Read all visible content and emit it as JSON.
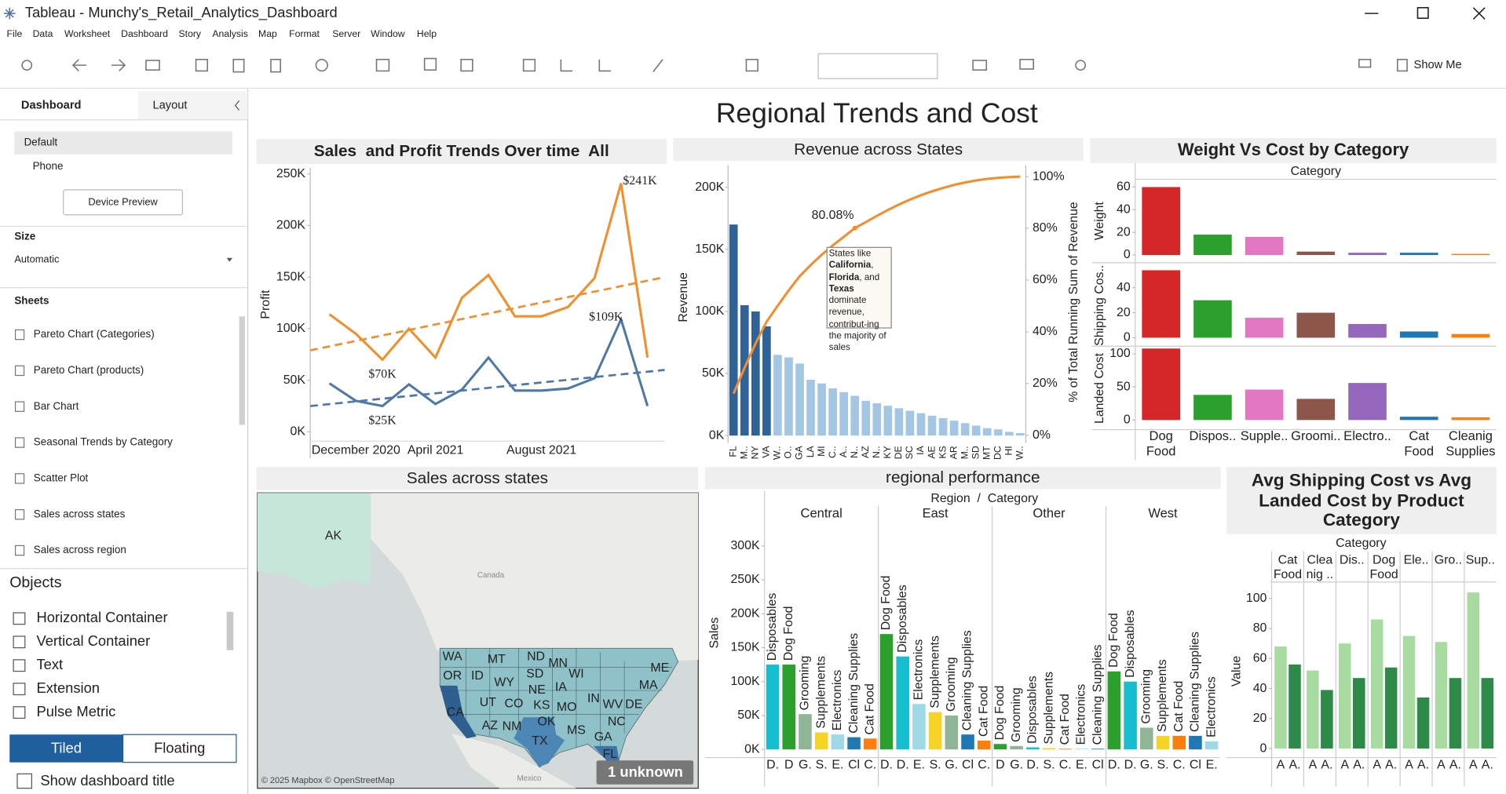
{
  "window": {
    "title": "Tableau - Munchy's_Retail_Analytics_Dashboard"
  },
  "menu": [
    "File",
    "Data",
    "Worksheet",
    "Dashboard",
    "Story",
    "Analysis",
    "Map",
    "Format",
    "Server",
    "Window",
    "Help"
  ],
  "toolbar": {
    "show_me": "Show Me"
  },
  "sidebar": {
    "tabs": [
      "Dashboard",
      "Layout"
    ],
    "devices": [
      "Default",
      "Phone"
    ],
    "device_preview": "Device Preview",
    "size_title": "Size",
    "size_value": "Automatic",
    "sheets_title": "Sheets",
    "sheets": [
      "Pareto Chart (Categories)",
      "Pareto Chart (products)",
      "Bar Chart",
      "Seasonal Trends by Category",
      "Scatter Plot",
      "Sales across states",
      "Sales across region"
    ],
    "objects_title": "Objects",
    "objects": [
      "Horizontal Container",
      "Vertical Container",
      "Text",
      "Extension",
      "Pulse Metric"
    ],
    "layout_modes": [
      "Tiled",
      "Floating"
    ],
    "show_title": "Show dashboard title"
  },
  "dashboard": {
    "title": "Regional Trends and Cost"
  },
  "chart_data": [
    {
      "type": "line",
      "title": "Sales  and Profit Trends Over time  All",
      "y_label": "Profit",
      "categories": [
        null,
        "December 2020",
        null,
        null,
        "April 2021",
        null,
        null,
        null,
        "August 2021",
        null,
        null,
        null,
        null
      ],
      "series": [
        {
          "color": "#f28e2b",
          "values": [
            114000,
            95000,
            70000,
            100000,
            72000,
            130000,
            152000,
            112000,
            112000,
            121000,
            149000,
            241000,
            72000
          ],
          "value_labels": [
            null,
            null,
            "$70K",
            null,
            null,
            null,
            null,
            null,
            null,
            null,
            null,
            "$241K",
            null
          ],
          "trend": [
            79000,
            150000
          ]
        },
        {
          "color": "#4e79a7",
          "values": [
            47000,
            30000,
            25000,
            46000,
            27000,
            41000,
            72000,
            40000,
            40000,
            42000,
            52000,
            109000,
            25000
          ],
          "value_labels": [
            null,
            null,
            "$25K",
            null,
            null,
            null,
            null,
            null,
            null,
            null,
            null,
            "$109K",
            null
          ],
          "trend": [
            25000,
            60000
          ]
        }
      ],
      "ylim": [
        -9000,
        256000
      ],
      "yticks": [
        {
          "value": 0,
          "label": "0K"
        },
        {
          "value": 50000,
          "label": "50K"
        },
        {
          "value": 100000,
          "label": "100K"
        },
        {
          "value": 150000,
          "label": "150K"
        },
        {
          "value": 200000,
          "label": "200K"
        },
        {
          "value": 250000,
          "label": "250K"
        }
      ]
    },
    {
      "type": "pareto",
      "title": "Revenue across States",
      "y_label": "Revenue",
      "y2_label": "% of Total Running Sum of Revenue",
      "categories": [
        "FL",
        "M..",
        "NY",
        "VA",
        "W..",
        "O..",
        "GA",
        "LA",
        "MI",
        "C..",
        "A..",
        "N..",
        "AZ",
        "N..",
        "KY",
        "DE",
        "SC",
        "IA",
        "AE",
        "KS",
        "AR",
        "M..",
        "SD",
        "MT",
        "DC",
        "HI",
        "W.."
      ],
      "values": [
        170000,
        105000,
        100000,
        88000,
        65000,
        63000,
        58000,
        45000,
        42000,
        38000,
        35000,
        32000,
        28000,
        26000,
        24000,
        22000,
        20000,
        18000,
        16000,
        14000,
        12000,
        10000,
        8000,
        6000,
        5000,
        3000,
        2000
      ],
      "colors": [
        "#2f6398",
        "#2f6398",
        "#2f6398",
        "#2f6398",
        "#a3c6e4",
        "#a3c6e4",
        "#a3c6e4",
        "#a3c6e4",
        "#a3c6e4",
        "#a3c6e4",
        "#a3c6e4",
        "#a3c6e4",
        "#a3c6e4",
        "#a3c6e4",
        "#a3c6e4",
        "#a3c6e4",
        "#a3c6e4",
        "#a3c6e4",
        "#a3c6e4",
        "#a3c6e4",
        "#a3c6e4",
        "#a3c6e4",
        "#a3c6e4",
        "#a3c6e4",
        "#a3c6e4",
        "#a3c6e4",
        "#a3c6e4"
      ],
      "line": {
        "axis": "y2",
        "color": "#f28e2b",
        "values": [
          16.1,
          26.1,
          35.5,
          43.9,
          50.0,
          56.0,
          61.5,
          65.8,
          69.8,
          73.4,
          76.7,
          80.08,
          82.4,
          84.8,
          87.1,
          89.2,
          91.1,
          92.8,
          94.3,
          95.6,
          96.8,
          97.7,
          98.5,
          99.1,
          99.5,
          99.8,
          100
        ],
        "value_labels": [
          null,
          null,
          null,
          null,
          null,
          null,
          null,
          null,
          null,
          null,
          null,
          "80.08%",
          null,
          null,
          null,
          null,
          null,
          null,
          null,
          null,
          null,
          null,
          null,
          null,
          null,
          null,
          null
        ]
      },
      "annotation": [
        {
          "text": "States like"
        },
        {
          "text": "California",
          "bold": true
        },
        {
          "text": ","
        },
        {
          "text": "Florida",
          "bold": true
        },
        {
          "text": ","
        },
        {
          "text": "and"
        },
        {
          "text": "Texas",
          "bold": true
        },
        {
          "text": "dominate revenue, contribut-ing the majority of sales"
        }
      ],
      "ylim": [
        -6000,
        218000
      ],
      "yticks": [
        {
          "value": 0,
          "label": "0K"
        },
        {
          "value": 50000,
          "label": "50K"
        },
        {
          "value": 100000,
          "label": "100K"
        },
        {
          "value": 150000,
          "label": "150K"
        },
        {
          "value": 200000,
          "label": "200K"
        }
      ],
      "y2lim": [
        -3,
        104.5
      ],
      "y2ticks": [
        {
          "value": 0,
          "label": "0%"
        },
        {
          "value": 20,
          "label": "20%"
        },
        {
          "value": 40,
          "label": "40%"
        },
        {
          "value": 60,
          "label": "60%"
        },
        {
          "value": 80,
          "label": "80%"
        },
        {
          "value": 100,
          "label": "100%"
        }
      ]
    },
    {
      "type": "bar",
      "title": "Weight Vs Cost by Category",
      "header": "Category",
      "categories": [
        "Dog Food",
        "Dispos..",
        "Supple..",
        "Groomi..",
        "Electro..",
        "Cat Food",
        "Cleanig Supplies"
      ],
      "colors": [
        "#d62728",
        "#2ca02c",
        "#e377c2",
        "#8c564b",
        "#9467bd",
        "#1f77b4",
        "#ff7f0e"
      ],
      "panels": [
        {
          "y_label": "Weight",
          "values": [
            60,
            18,
            16,
            3,
            2,
            2,
            1
          ],
          "ylim": [
            -6,
            66
          ],
          "yticks": [
            0,
            20,
            40,
            60
          ]
        },
        {
          "y_label": "Shipping Cos..",
          "values": [
            54,
            30,
            16,
            20,
            11,
            5,
            3
          ],
          "ylim": [
            -6,
            57.7
          ],
          "yticks": [
            0,
            20,
            40
          ]
        },
        {
          "y_label": "Landed Cost",
          "values": [
            108,
            38,
            46,
            32,
            56,
            5,
            4
          ],
          "ylim": [
            -13,
            108.7
          ],
          "yticks": [
            0,
            50,
            100
          ]
        }
      ]
    },
    {
      "type": "map",
      "title": "Sales across states",
      "labels": [
        "AK",
        "WA",
        "MT",
        "ND",
        "MN",
        "OR",
        "ID",
        "WY",
        "SD",
        "WI",
        "IA",
        "NE",
        "UT",
        "CO",
        "KS",
        "MO",
        "IN",
        "WV",
        "DE",
        "MA",
        "ME",
        "CA",
        "AZ",
        "NM",
        "OK",
        "TX",
        "MS",
        "NC",
        "GA",
        "FL"
      ],
      "country_labels": [
        "Canada",
        "Mexico"
      ],
      "attribution": "© 2025 Mapbox © OpenStreetMap",
      "unknown": "1 unknown"
    },
    {
      "type": "bar",
      "title": "regional performance",
      "header": "Region  /  Category",
      "y_label": "Sales",
      "panels": [
        {
          "name": "Central",
          "categories": [
            "Disposables",
            "Dog Food",
            "Grooming",
            "Supplements",
            "Electronics",
            "Cleaning Supplies",
            "Cat Food"
          ],
          "tick_labels": [
            "D.",
            "D",
            "G.",
            "S.",
            "E.",
            "Cl",
            "C."
          ],
          "colors": [
            "#17becf",
            "#2ca02c",
            "#8fb596",
            "#f5d327",
            "#9edae5",
            "#1f77b4",
            "#ff7f0e"
          ],
          "values": [
            125000,
            125000,
            52000,
            25000,
            22000,
            18000,
            16000
          ]
        },
        {
          "name": "East",
          "categories": [
            "Dog Food",
            "Disposables",
            "Electronics",
            "Supplements",
            "Grooming",
            "Cleaning Supplies",
            "Cat Food"
          ],
          "tick_labels": [
            "D.",
            "D.",
            "E.",
            "S.",
            "G.",
            "Cl",
            "C."
          ],
          "colors": [
            "#2ca02c",
            "#17becf",
            "#9edae5",
            "#f5d327",
            "#8fb596",
            "#1f77b4",
            "#ff7f0e"
          ],
          "values": [
            170000,
            137000,
            67000,
            55000,
            50000,
            22000,
            13000
          ]
        },
        {
          "name": "Other",
          "categories": [
            "Dog Food",
            "Grooming",
            "Disposables",
            "Supplements",
            "Cat Food",
            "Electronics",
            "Cleaning Supplies"
          ],
          "tick_labels": [
            "D",
            "G.",
            "D.",
            "S.",
            "C.",
            "E.",
            "Cl"
          ],
          "colors": [
            "#2ca02c",
            "#8fb596",
            "#17becf",
            "#f5d327",
            "#ff7f0e",
            "#9edae5",
            "#1f77b4"
          ],
          "values": [
            8000,
            5000,
            3000,
            2000,
            1000,
            1000,
            1000
          ]
        },
        {
          "name": "West",
          "categories": [
            "Dog Food",
            "Disposables",
            "Grooming",
            "Supplements",
            "Cat Food",
            "Cleaning Supplies",
            "Electronics"
          ],
          "tick_labels": [
            "D.",
            "D.",
            "G.",
            "S.",
            "C.",
            "Cl",
            "E."
          ],
          "colors": [
            "#2ca02c",
            "#17becf",
            "#8fb596",
            "#f5d327",
            "#ff7f0e",
            "#1f77b4",
            "#9edae5"
          ],
          "values": [
            115000,
            100000,
            32000,
            20000,
            20000,
            20000,
            12000
          ]
        }
      ],
      "ylim": [
        -12000,
        330000
      ],
      "yticks": [
        {
          "value": 0,
          "label": "0K"
        },
        {
          "value": 50000,
          "label": "50K"
        },
        {
          "value": 100000,
          "label": "100K"
        },
        {
          "value": 150000,
          "label": "150K"
        },
        {
          "value": 200000,
          "label": "200K"
        },
        {
          "value": 250000,
          "label": "250K"
        },
        {
          "value": 300000,
          "label": "300K"
        }
      ]
    },
    {
      "type": "bar",
      "title": "Avg Shipping Cost vs Avg Landed Cost by Product Category",
      "header": "Category",
      "y_label": "Value",
      "categories": [
        "Cat Food",
        "Clea nig ..",
        "Dis..",
        "Dog Food",
        "Ele..",
        "Gro..",
        "Sup.."
      ],
      "series": [
        {
          "color": "#a8dba0",
          "tick_label": "A",
          "values": [
            68,
            52,
            70,
            86,
            75,
            71,
            104
          ]
        },
        {
          "color": "#2d8a48",
          "tick_label": "A.",
          "values": [
            56,
            39,
            47,
            54,
            34,
            47,
            47
          ]
        }
      ],
      "ylim": [
        -6,
        109
      ],
      "yticks": [
        0,
        20,
        40,
        60,
        80,
        100
      ]
    }
  ]
}
